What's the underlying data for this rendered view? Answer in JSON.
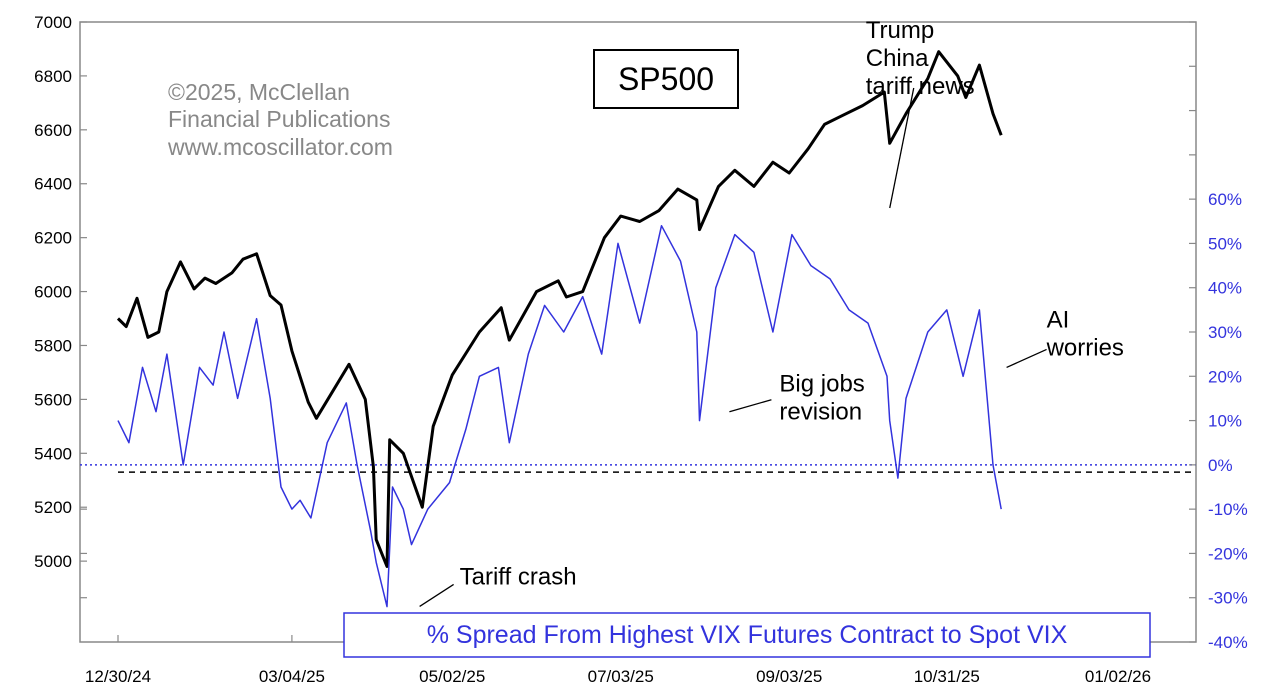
{
  "chart_data": {
    "type": "line",
    "title": "SP500",
    "subtitle": "% Spread From Highest VIX Futures Contract to Spot VIX",
    "credit": [
      "©2025, McClellan",
      "Financial Publications",
      "www.mcoscillator.com"
    ],
    "x_ticks": [
      "12/30/24",
      "03/04/25",
      "05/02/25",
      "07/03/25",
      "09/03/25",
      "10/31/25",
      "01/02/26"
    ],
    "left_axis": {
      "ylim": [
        4700,
        7000
      ],
      "ticks": [
        5000,
        5200,
        5400,
        5600,
        5800,
        6000,
        6200,
        6400,
        6600,
        6800,
        7000
      ]
    },
    "right_axis": {
      "ylim": [
        -40,
        100
      ],
      "ticks": [
        "-40%",
        "-30%",
        "-20%",
        "-10%",
        "0%",
        "10%",
        "20%",
        "30%",
        "40%",
        "50%",
        "60%"
      ]
    },
    "reference_lines": {
      "sp500_dashed": 5330,
      "spread_dotted": 0
    },
    "colors": {
      "sp500": "#000000",
      "spread": "#3333dd",
      "axis": "#888888"
    },
    "series": [
      {
        "name": "SP500",
        "axis": "left",
        "x": [
          "2024-12-30",
          "2025-01-02",
          "2025-01-06",
          "2025-01-10",
          "2025-01-14",
          "2025-01-17",
          "2025-01-22",
          "2025-01-27",
          "2025-01-31",
          "2025-02-04",
          "2025-02-10",
          "2025-02-14",
          "2025-02-19",
          "2025-02-24",
          "2025-02-28",
          "2025-03-04",
          "2025-03-10",
          "2025-03-13",
          "2025-03-19",
          "2025-03-25",
          "2025-03-31",
          "2025-04-03",
          "2025-04-04",
          "2025-04-08",
          "2025-04-09",
          "2025-04-14",
          "2025-04-21",
          "2025-04-25",
          "2025-05-02",
          "2025-05-12",
          "2025-05-20",
          "2025-05-23",
          "2025-06-02",
          "2025-06-10",
          "2025-06-13",
          "2025-06-19",
          "2025-06-27",
          "2025-07-03",
          "2025-07-10",
          "2025-07-17",
          "2025-07-24",
          "2025-07-31",
          "2025-08-01",
          "2025-08-08",
          "2025-08-14",
          "2025-08-21",
          "2025-08-28",
          "2025-09-03",
          "2025-09-10",
          "2025-09-16",
          "2025-09-22",
          "2025-09-30",
          "2025-10-08",
          "2025-10-10",
          "2025-10-16",
          "2025-10-24",
          "2025-10-28",
          "2025-11-04",
          "2025-11-07",
          "2025-11-12",
          "2025-11-17",
          "2025-11-20"
        ],
        "values": [
          5900,
          5870,
          5975,
          5830,
          5850,
          6000,
          6110,
          6010,
          6050,
          6030,
          6070,
          6120,
          6140,
          5985,
          5950,
          5780,
          5590,
          5530,
          5630,
          5730,
          5600,
          5350,
          5080,
          4980,
          5450,
          5400,
          5200,
          5500,
          5690,
          5850,
          5940,
          5820,
          6000,
          6040,
          5980,
          6000,
          6200,
          6280,
          6260,
          6300,
          6380,
          6340,
          6230,
          6390,
          6450,
          6390,
          6480,
          6440,
          6530,
          6620,
          6650,
          6690,
          6740,
          6550,
          6660,
          6790,
          6890,
          6800,
          6720,
          6840,
          6660,
          6580
        ]
      },
      {
        "name": "% Spread",
        "axis": "right",
        "x": [
          "2024-12-30",
          "2025-01-03",
          "2025-01-08",
          "2025-01-13",
          "2025-01-17",
          "2025-01-23",
          "2025-01-29",
          "2025-02-03",
          "2025-02-07",
          "2025-02-12",
          "2025-02-19",
          "2025-02-24",
          "2025-02-28",
          "2025-03-04",
          "2025-03-07",
          "2025-03-11",
          "2025-03-17",
          "2025-03-24",
          "2025-03-28",
          "2025-04-02",
          "2025-04-04",
          "2025-04-08",
          "2025-04-10",
          "2025-04-14",
          "2025-04-17",
          "2025-04-23",
          "2025-05-01",
          "2025-05-07",
          "2025-05-12",
          "2025-05-19",
          "2025-05-23",
          "2025-05-30",
          "2025-06-05",
          "2025-06-12",
          "2025-06-19",
          "2025-06-26",
          "2025-07-02",
          "2025-07-10",
          "2025-07-18",
          "2025-07-25",
          "2025-07-31",
          "2025-08-01",
          "2025-08-07",
          "2025-08-14",
          "2025-08-21",
          "2025-08-28",
          "2025-09-04",
          "2025-09-11",
          "2025-09-18",
          "2025-09-25",
          "2025-10-02",
          "2025-10-09",
          "2025-10-10",
          "2025-10-13",
          "2025-10-16",
          "2025-10-24",
          "2025-10-31",
          "2025-11-06",
          "2025-11-12",
          "2025-11-17",
          "2025-11-20"
        ],
        "values": [
          10,
          5,
          22,
          12,
          25,
          0,
          22,
          18,
          30,
          15,
          33,
          15,
          -5,
          -10,
          -8,
          -12,
          5,
          14,
          0,
          -15,
          -22,
          -32,
          -5,
          -10,
          -18,
          -10,
          -4,
          8,
          20,
          22,
          5,
          25,
          36,
          30,
          38,
          25,
          50,
          32,
          54,
          46,
          30,
          10,
          40,
          52,
          48,
          30,
          52,
          45,
          42,
          35,
          32,
          20,
          10,
          -3,
          15,
          30,
          35,
          20,
          35,
          0,
          -10
        ]
      }
    ],
    "annotations": [
      {
        "text": [
          "Tariff crash"
        ],
        "x": "2025-04-20",
        "y": -27,
        "axis": "right"
      },
      {
        "text": [
          "Big jobs",
          "revision"
        ],
        "x": "2025-08-12",
        "y": 12,
        "axis": "right"
      },
      {
        "text": [
          "Trump",
          "China",
          "tariff news"
        ],
        "x": "2025-10-10",
        "y": 58,
        "axis": "right"
      },
      {
        "text": [
          "AI",
          "worries"
        ],
        "x": "2025-11-22",
        "y": 22,
        "axis": "right"
      }
    ]
  }
}
